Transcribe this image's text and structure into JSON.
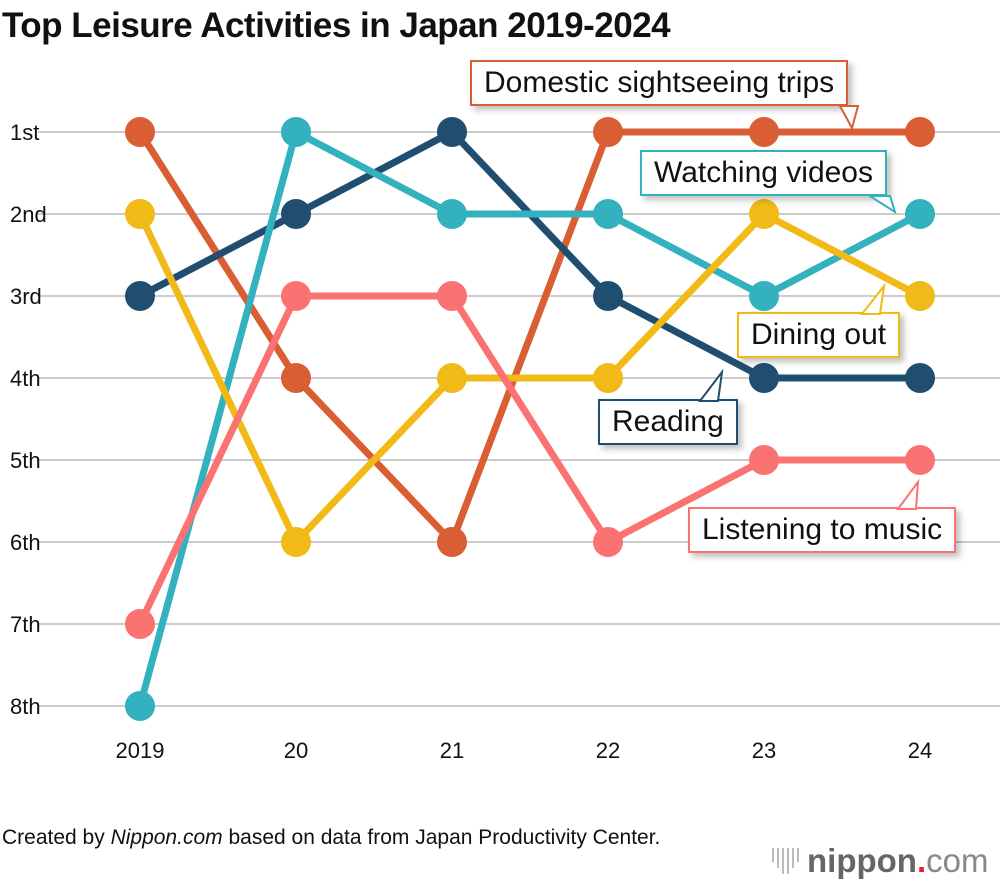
{
  "chart_data": {
    "type": "line",
    "title": "Top Leisure Activities in Japan 2019-2024",
    "x": [
      "2019",
      "20",
      "21",
      "22",
      "23",
      "24"
    ],
    "y_ticks": [
      "1st",
      "2nd",
      "3rd",
      "4th",
      "5th",
      "6th",
      "7th",
      "8th"
    ],
    "ylim": [
      1,
      8
    ],
    "y_inverted": true,
    "grid": true,
    "series": [
      {
        "name": "Domestic sightseeing trips",
        "color": "#D95E33",
        "values": [
          1,
          4,
          6,
          1,
          1,
          1
        ]
      },
      {
        "name": "Reading",
        "color": "#1F4E70",
        "values": [
          3,
          2,
          1,
          3,
          4,
          4
        ]
      },
      {
        "name": "Watching videos",
        "color": "#34B1BF",
        "values": [
          8,
          1,
          2,
          2,
          3,
          2
        ]
      },
      {
        "name": "Dining out",
        "color": "#F1BA17",
        "values": [
          2,
          6,
          4,
          4,
          2,
          3
        ]
      },
      {
        "name": "Listening to music",
        "color": "#FA7372",
        "values": [
          7,
          3,
          3,
          6,
          5,
          5
        ]
      }
    ]
  },
  "footer": {
    "credit_prefix": "Created by ",
    "credit_site": "Nippon.com",
    "credit_suffix": " based on data from Japan Productivity Center.",
    "logo": {
      "name": "nippon",
      "dot": ".",
      "tld": "com"
    }
  }
}
